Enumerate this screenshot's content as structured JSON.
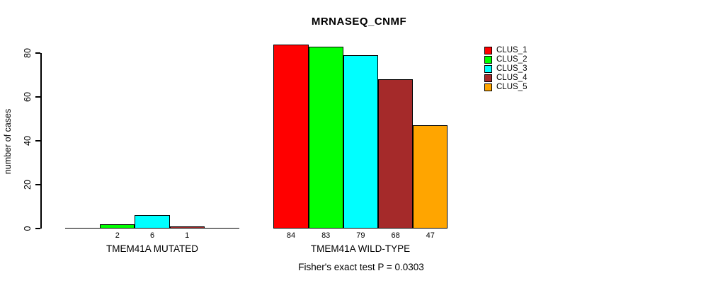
{
  "chart_data": {
    "type": "bar",
    "title": "MRNASEQ_CNMF",
    "ylabel": "number of cases",
    "yticks": [
      0,
      20,
      40,
      60,
      80
    ],
    "ylim": [
      0,
      80
    ],
    "grid": false,
    "legend_position": "right",
    "clusters": [
      "CLUS_1",
      "CLUS_2",
      "CLUS_3",
      "CLUS_4",
      "CLUS_5"
    ],
    "cluster_colors": [
      "#ff0000",
      "#00ff00",
      "#00ffff",
      "#a52a2a",
      "#ffa500"
    ],
    "groups": [
      {
        "label": "TMEM41A MUTATED",
        "values": [
          0,
          2,
          6,
          1,
          0
        ]
      },
      {
        "label": "TMEM41A WILD-TYPE",
        "values": [
          84,
          83,
          79,
          68,
          47
        ]
      }
    ],
    "value_labels_shown": [
      "2",
      "6",
      "1",
      "84",
      "83",
      "79",
      "68",
      "47"
    ],
    "footnote": "Fisher's exact test P = 0.0303"
  }
}
